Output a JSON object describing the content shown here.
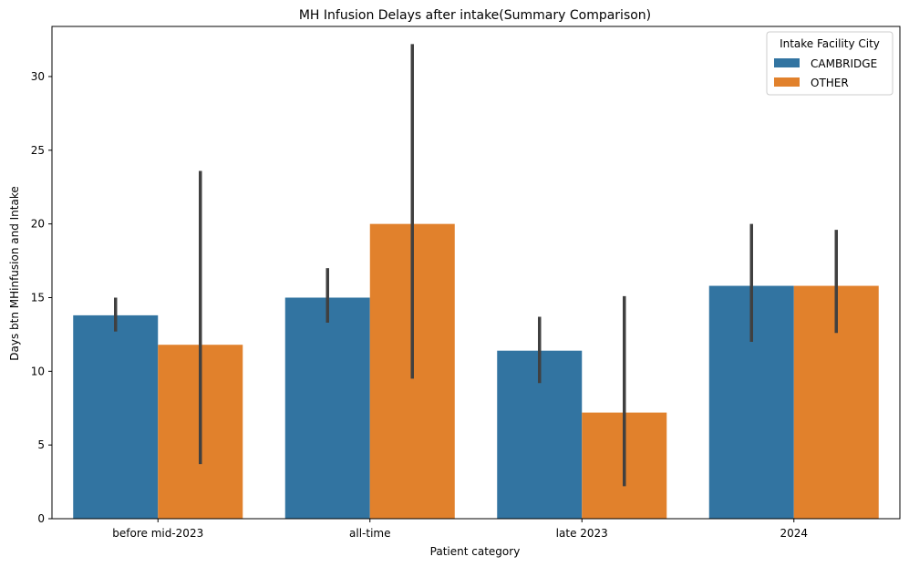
{
  "chart_data": {
    "type": "bar",
    "title": "MH Infusion Delays after intake(Summary Comparison)",
    "xlabel": "Patient category",
    "ylabel": "Days btn MHinfusion and Intake",
    "categories": [
      "before mid-2023",
      "all-time",
      "late 2023",
      "2024"
    ],
    "ylim": [
      0,
      33.4
    ],
    "yticks": [
      0,
      5,
      10,
      15,
      20,
      25,
      30
    ],
    "grid": false,
    "legend": {
      "title": "Intake Facility City",
      "placement": "top-right"
    },
    "series": [
      {
        "name": "CAMBRIDGE",
        "color": "#3274a1",
        "values": [
          13.8,
          15.0,
          11.4,
          15.8
        ],
        "error_low": [
          12.7,
          13.3,
          9.2,
          12.0
        ],
        "error_high": [
          15.0,
          17.0,
          13.7,
          20.0
        ]
      },
      {
        "name": "OTHER",
        "color": "#e1812c",
        "values": [
          11.8,
          20.0,
          7.2,
          15.8
        ],
        "error_low": [
          3.7,
          9.5,
          2.2,
          12.6
        ],
        "error_high": [
          23.6,
          32.2,
          15.1,
          19.6
        ]
      }
    ],
    "errorbar_color": "#404040"
  }
}
